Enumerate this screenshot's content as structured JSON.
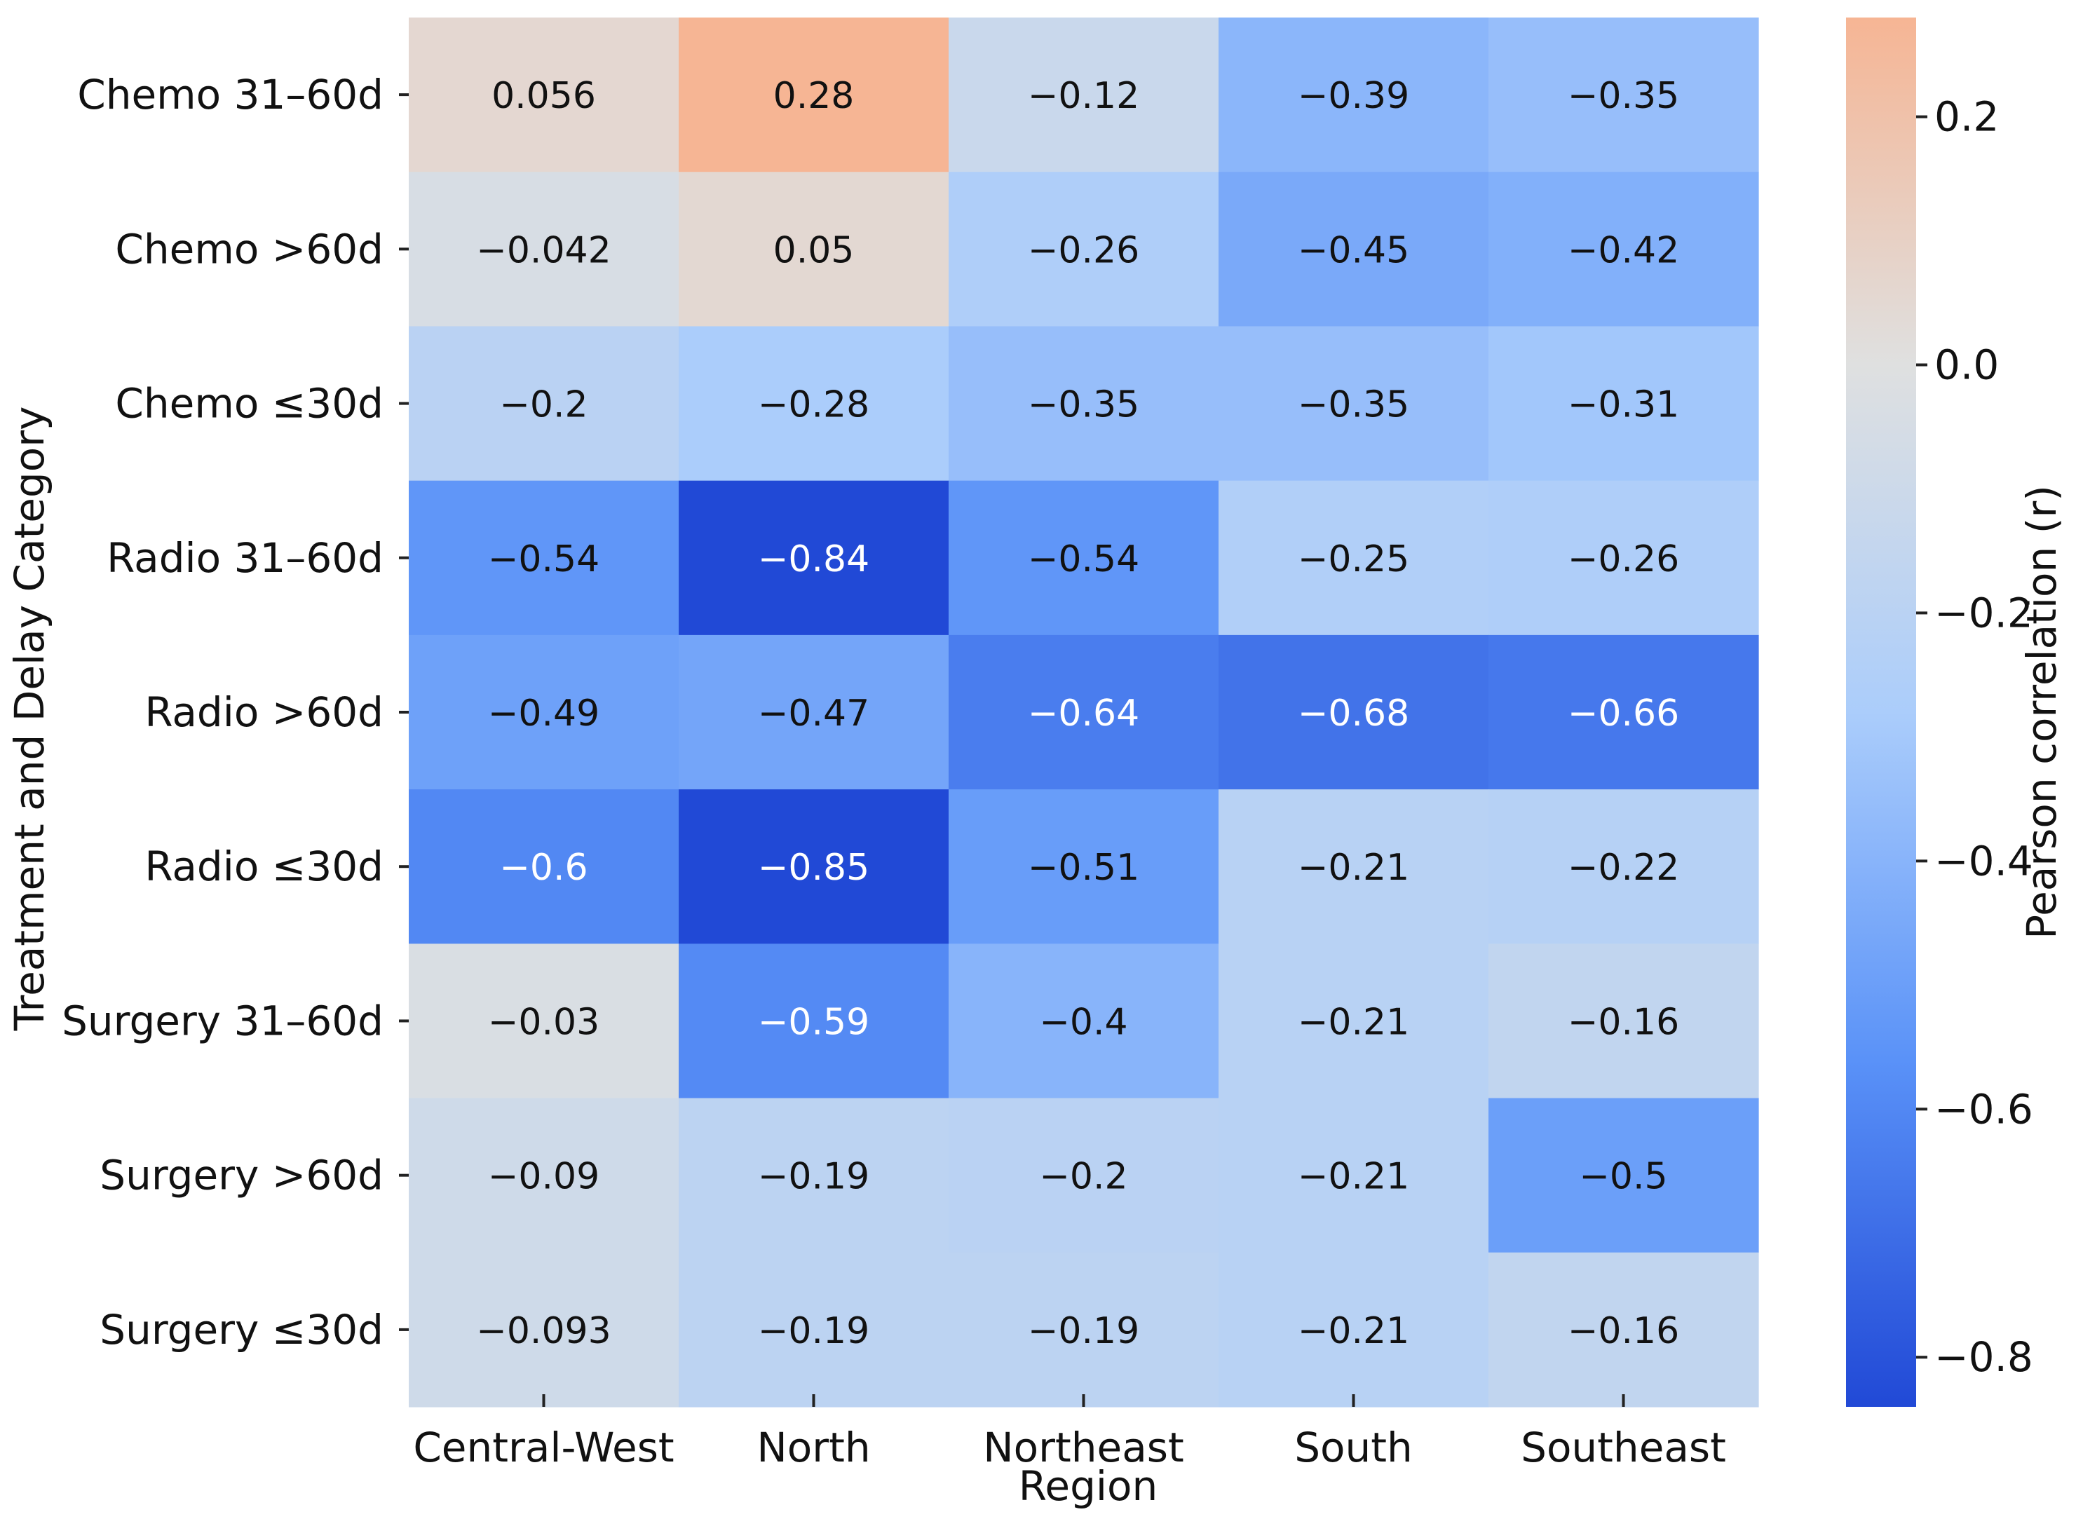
{
  "chart_data": {
    "type": "heatmap",
    "xlabel": "Region",
    "ylabel": "Treatment and Delay Category",
    "colorbar_label": "Pearson correlation (r)",
    "x_categories": [
      "Central-West",
      "North",
      "Northeast",
      "South",
      "Southeast"
    ],
    "y_categories": [
      "Chemo 31–60d",
      "Chemo >60d",
      "Chemo ≤30d",
      "Radio 31–60d",
      "Radio >60d",
      "Radio ≤30d",
      "Surgery 31–60d",
      "Surgery  >60d",
      "Surgery  ≤30d"
    ],
    "values": [
      [
        0.056,
        0.28,
        -0.12,
        -0.39,
        -0.35
      ],
      [
        -0.042,
        0.05,
        -0.26,
        -0.45,
        -0.42
      ],
      [
        -0.2,
        -0.28,
        -0.35,
        -0.35,
        -0.31
      ],
      [
        -0.54,
        -0.84,
        -0.54,
        -0.25,
        -0.26
      ],
      [
        -0.49,
        -0.47,
        -0.64,
        -0.68,
        -0.66
      ],
      [
        -0.6,
        -0.85,
        -0.51,
        -0.21,
        -0.22
      ],
      [
        -0.03,
        -0.59,
        -0.4,
        -0.21,
        -0.16
      ],
      [
        -0.09,
        -0.19,
        -0.2,
        -0.21,
        -0.5
      ],
      [
        -0.093,
        -0.19,
        -0.19,
        -0.21,
        -0.16
      ]
    ],
    "labels": [
      [
        "0.056",
        "0.28",
        "−0.12",
        "−0.39",
        "−0.35"
      ],
      [
        "−0.042",
        "0.05",
        "−0.26",
        "−0.45",
        "−0.42"
      ],
      [
        "−0.2",
        "−0.28",
        "−0.35",
        "−0.35",
        "−0.31"
      ],
      [
        "−0.54",
        "−0.84",
        "−0.54",
        "−0.25",
        "−0.26"
      ],
      [
        "−0.49",
        "−0.47",
        "−0.64",
        "−0.68",
        "−0.66"
      ],
      [
        "−0.6",
        "−0.85",
        "−0.51",
        "−0.21",
        "−0.22"
      ],
      [
        "−0.03",
        "−0.59",
        "−0.4",
        "−0.21",
        "−0.16"
      ],
      [
        "−0.09",
        "−0.19",
        "−0.2",
        "−0.21",
        "−0.5"
      ],
      [
        "−0.093",
        "−0.19",
        "−0.19",
        "−0.21",
        "−0.16"
      ]
    ],
    "color_range": [
      -0.84,
      0.28
    ],
    "colorbar_ticks": [
      0.2,
      0.0,
      -0.2,
      -0.4,
      -0.6,
      -0.8
    ],
    "colorbar_tick_labels": [
      "0.2",
      "0.0",
      "−0.2",
      "−0.4",
      "−0.6",
      "−0.8"
    ],
    "colormap": [
      "#2149d6",
      "#5a92f8",
      "#abcdfb",
      "#dfe0e0",
      "#f6b594"
    ]
  }
}
